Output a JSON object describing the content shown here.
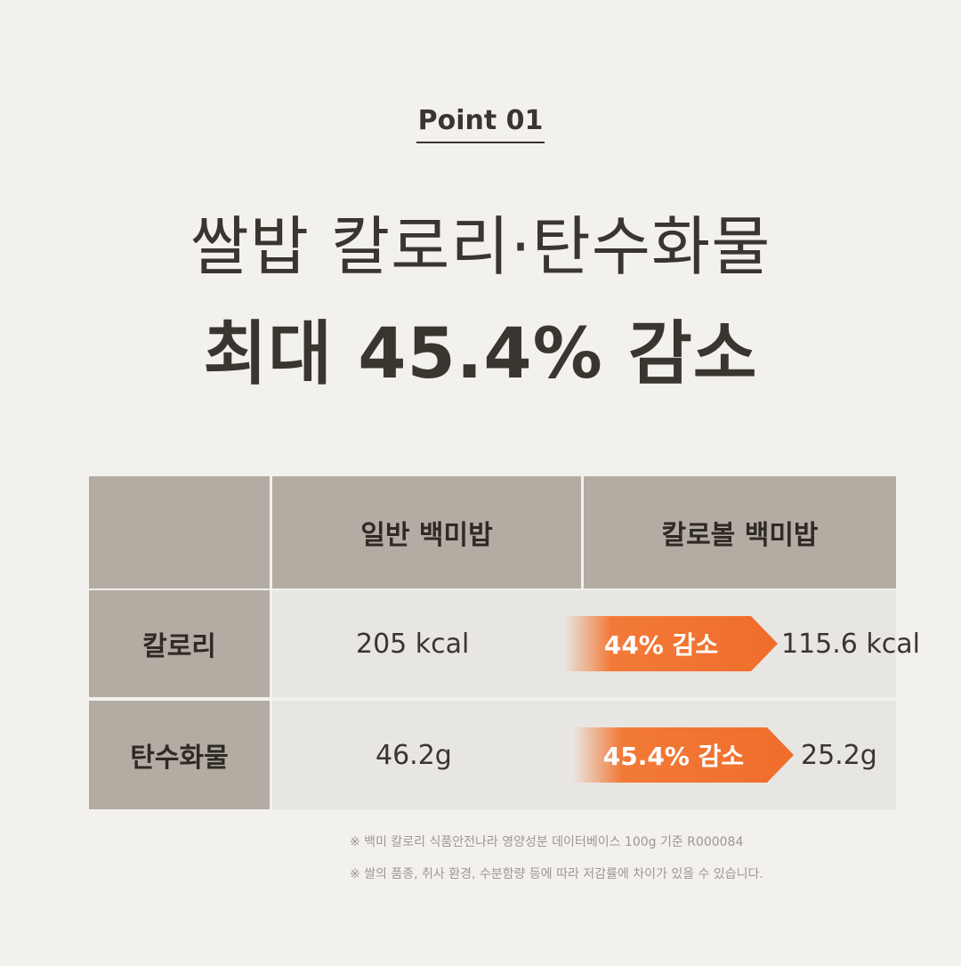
{
  "point_label": "Point 01",
  "headline": {
    "line1": "쌀밥 칼로리·탄수화물",
    "line2": "최대 45.4% 감소"
  },
  "table": {
    "columns": [
      "일반 백미밥",
      "칼로볼 백미밥"
    ],
    "rows": [
      {
        "label": "칼로리",
        "regular": "205 kcal",
        "reduction": "44% 감소",
        "reduced": "115.6 kcal"
      },
      {
        "label": "탄수화물",
        "regular": "46.2g",
        "reduction": "45.4% 감소",
        "reduced": "25.2g"
      }
    ]
  },
  "notes": [
    "※ 백미 칼로리 식품안전나라 영양성분 데이터베이스 100g 기준 R000084",
    "※ 쌀의 품종, 취사 환경, 수분함량 등에 따라 저감률에 차이가 있을 수 있습니다."
  ],
  "colors": {
    "background": "#f3f1ee",
    "header_cell": "#b3aca3",
    "body_cell": "#e8e6e2",
    "accent_orange": "#f06d2b",
    "text_dark": "#3b3530"
  }
}
